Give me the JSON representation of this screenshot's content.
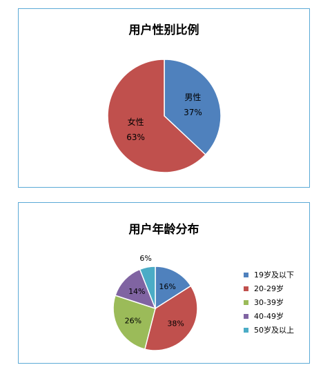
{
  "chart_data": [
    {
      "type": "pie",
      "title": "用户性别比例",
      "categories": [
        "男性",
        "女性"
      ],
      "values": [
        37,
        63
      ],
      "data_labels": [
        "37%",
        "63%"
      ],
      "colors": [
        "#4f81bd",
        "#c0504d"
      ],
      "legend": "none",
      "labels_inside": true
    },
    {
      "type": "pie",
      "title": "用户年龄分布",
      "categories": [
        "19岁及以下",
        "20-29岁",
        "30-39岁",
        "40-49岁",
        "50岁及以上"
      ],
      "values": [
        16,
        38,
        26,
        14,
        6
      ],
      "data_labels": [
        "16%",
        "38%",
        "26%",
        "14%",
        "6%"
      ],
      "colors": [
        "#4f81bd",
        "#c0504d",
        "#9bbb59",
        "#8064a2",
        "#4bacc6"
      ],
      "legend": "right"
    }
  ]
}
